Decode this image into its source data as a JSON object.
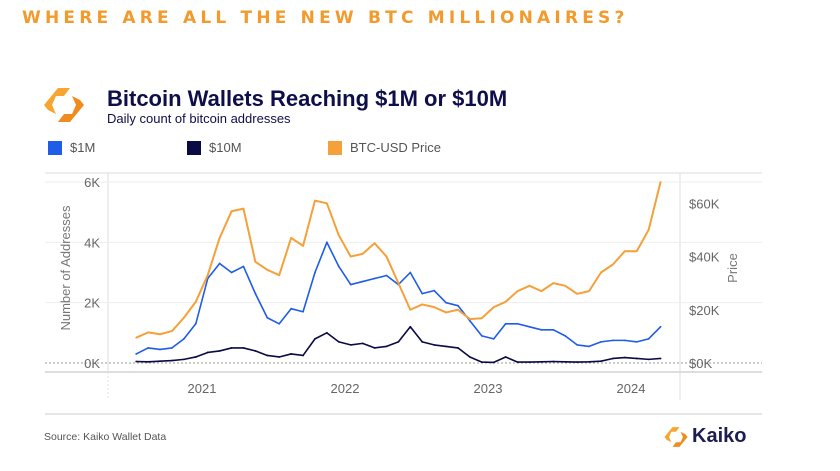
{
  "headline": "WHERE ARE ALL THE NEW BTC MILLIONAIRES?",
  "chart_data": {
    "type": "line",
    "title": "Bitcoin Wallets Reaching $1M or $10M",
    "subtitle": "Daily count of bitcoin addresses",
    "ylabel": "Number of Addresses",
    "y2label": "Price",
    "ylim": [
      0,
      6000
    ],
    "y2lim": [
      0,
      68000
    ],
    "yticks": [
      "0K",
      "2K",
      "4K",
      "6K"
    ],
    "y2ticks": [
      "$0K",
      "$20K",
      "$40K",
      "$60K"
    ],
    "xticks": [
      "2021",
      "2022",
      "2023",
      "2024"
    ],
    "x_start": 2020.5,
    "x_step_months": 1,
    "grid": true,
    "legend_position": "top-left",
    "series": [
      {
        "name": "$1M",
        "color": "#1f5ce8",
        "axis": "left",
        "values": [
          300,
          500,
          450,
          500,
          800,
          1300,
          2800,
          3300,
          3000,
          3200,
          2300,
          1500,
          1300,
          1800,
          1700,
          3000,
          4000,
          3200,
          2600,
          2700,
          2800,
          2900,
          2600,
          3000,
          2300,
          2400,
          2000,
          1900,
          1400,
          900,
          800,
          1300,
          1300,
          1200,
          1100,
          1100,
          900,
          600,
          550,
          700,
          750,
          750,
          700,
          800,
          1200
        ]
      },
      {
        "name": "$10M",
        "color": "#0a0a45",
        "axis": "left",
        "values": [
          50,
          40,
          60,
          80,
          120,
          200,
          350,
          400,
          500,
          500,
          400,
          250,
          200,
          300,
          250,
          800,
          1000,
          700,
          600,
          650,
          500,
          550,
          700,
          1200,
          700,
          600,
          550,
          500,
          200,
          30,
          20,
          200,
          30,
          30,
          40,
          50,
          40,
          30,
          40,
          60,
          150,
          180,
          150,
          120,
          150
        ]
      },
      {
        "name": "BTC-USD Price",
        "color": "#f5a03a",
        "axis": "right",
        "values": [
          9500,
          11500,
          10800,
          12000,
          17000,
          23000,
          33000,
          47000,
          57000,
          58000,
          38000,
          35000,
          33000,
          47000,
          44000,
          61000,
          60000,
          48000,
          40000,
          41000,
          45000,
          40000,
          30000,
          20000,
          22000,
          21000,
          19000,
          20000,
          16500,
          16800,
          21000,
          23000,
          27000,
          29000,
          27000,
          30000,
          29000,
          26000,
          27000,
          34000,
          37000,
          42000,
          42000,
          50000,
          68000
        ]
      }
    ]
  },
  "source": "Source: Kaiko Wallet Data",
  "brand": "Kaiko",
  "colors": {
    "accent": "#f39a2c",
    "navy": "#0e0e4a"
  }
}
